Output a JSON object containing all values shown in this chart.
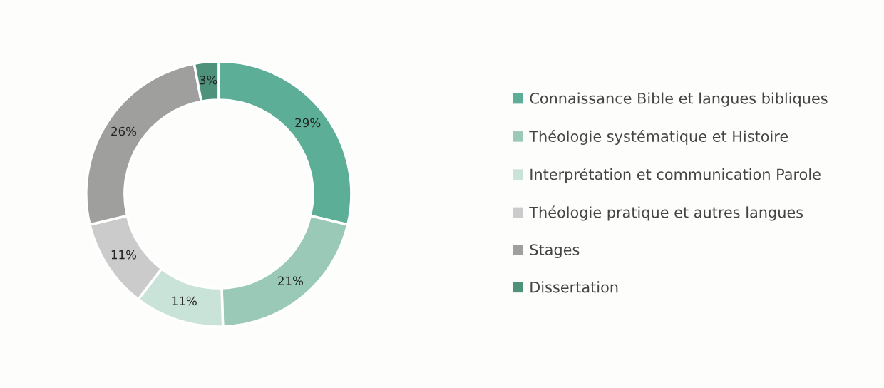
{
  "chart_data": {
    "type": "donut",
    "categories": [
      "Connaissance Bible et langues bibliques",
      "Théologie systématique et Histoire",
      "Interprétation et communication Parole",
      "Théologie pratique et autres langues",
      "Stages",
      "Dissertation"
    ],
    "values": [
      29,
      21,
      11,
      11,
      26,
      3
    ],
    "colors": [
      "#5cae96",
      "#9bc9b7",
      "#cae3d9",
      "#cbcbcb",
      "#9f9f9e",
      "#4f927c"
    ],
    "value_labels": [
      "29%",
      "21%",
      "11%",
      "11%",
      "26%",
      "3%"
    ],
    "legend": "right"
  }
}
